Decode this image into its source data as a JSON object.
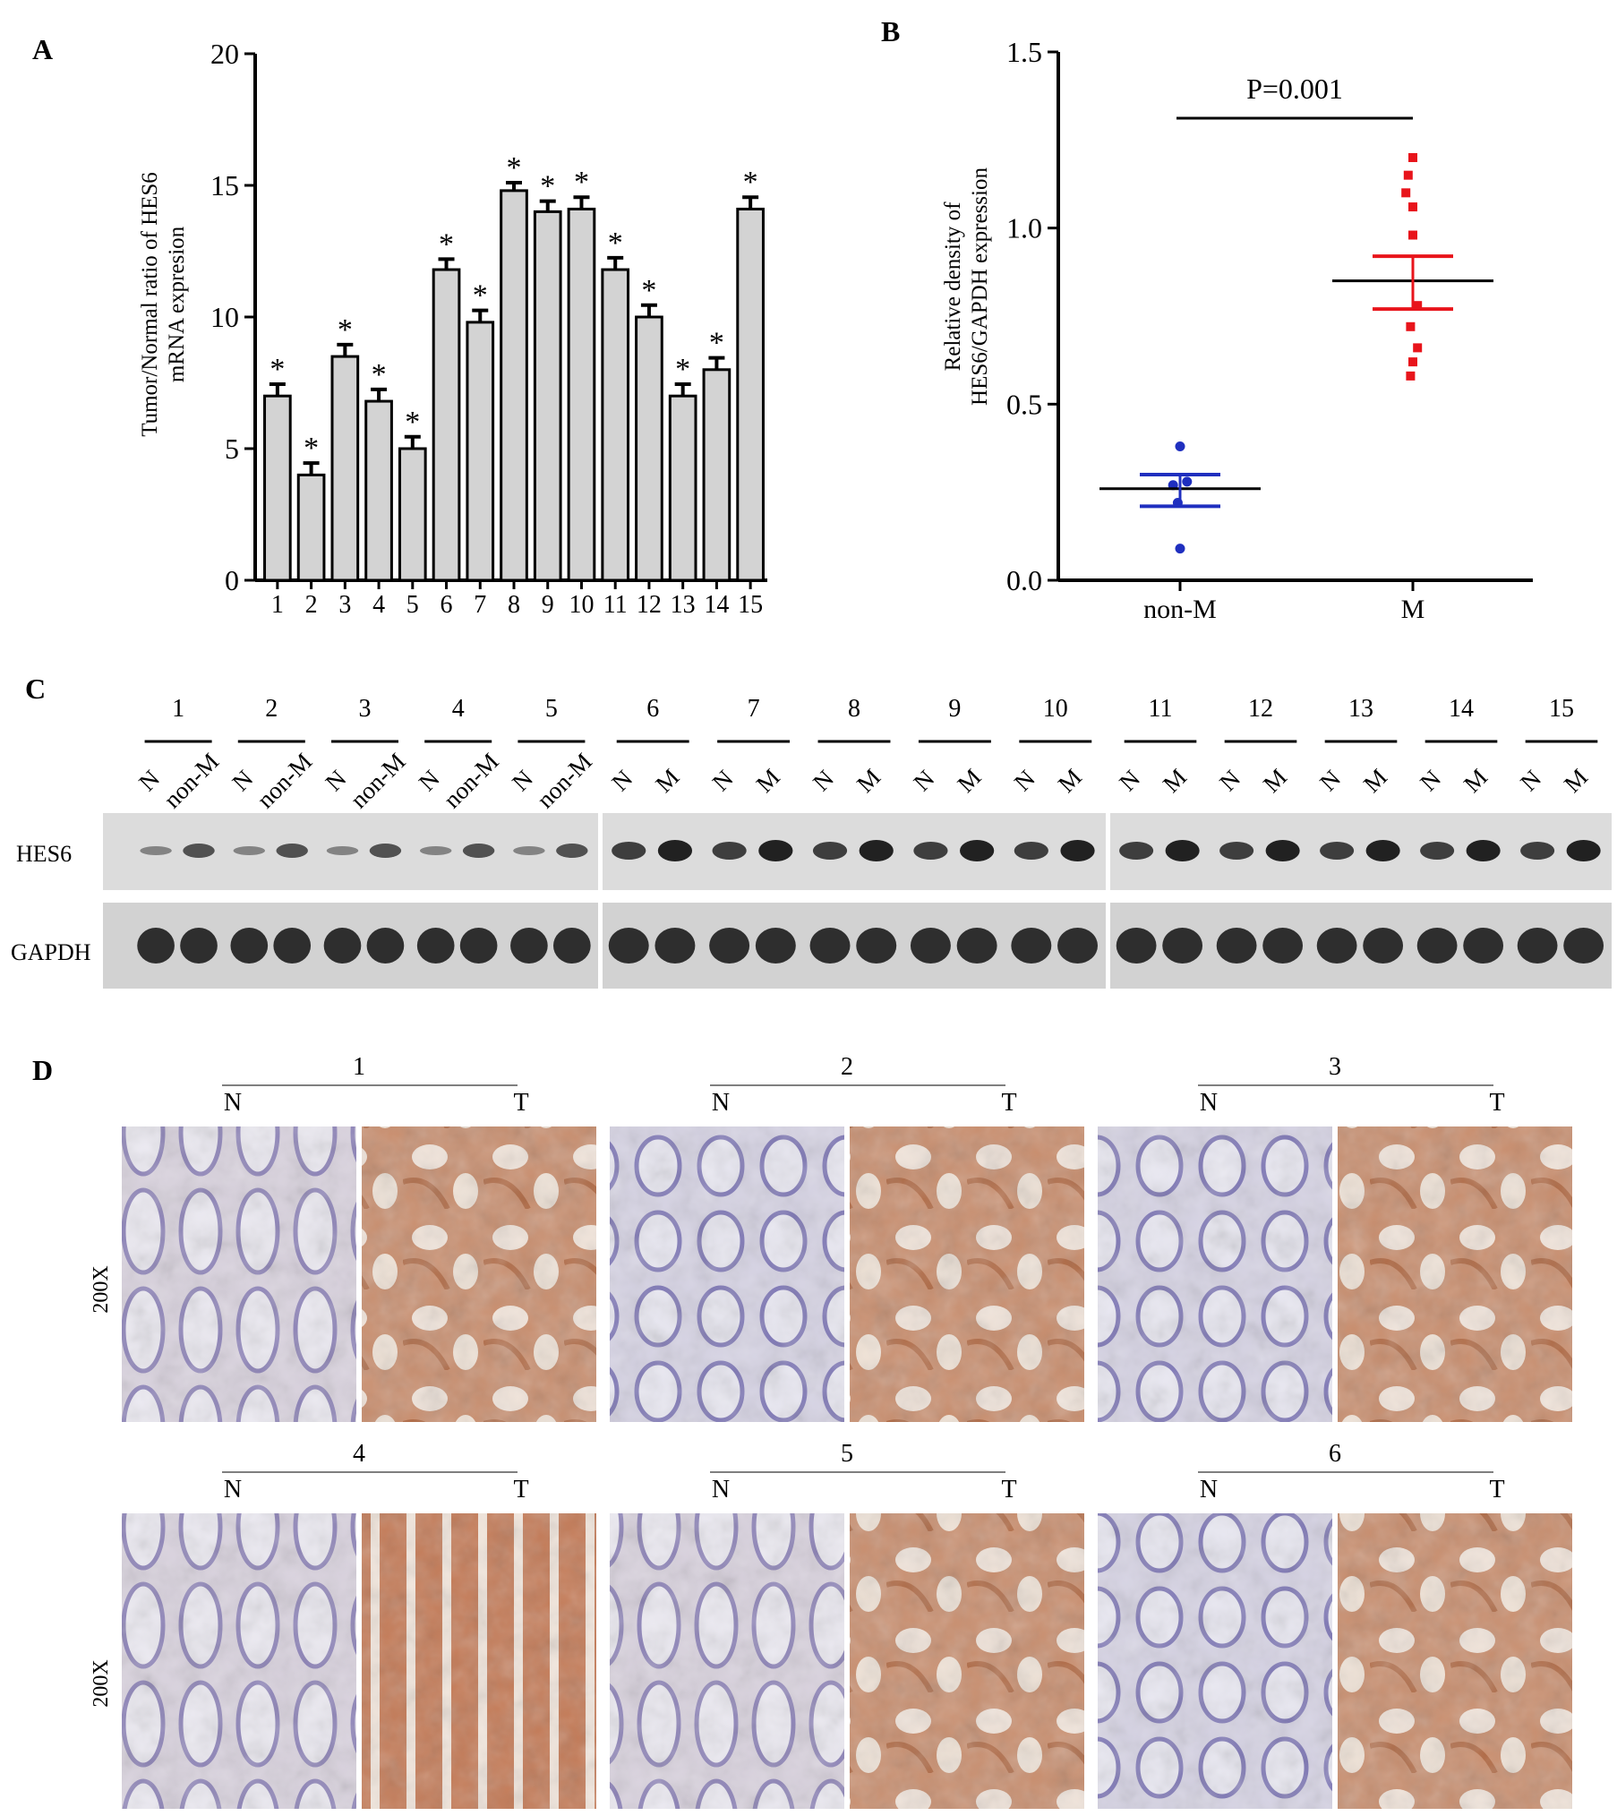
{
  "panels": {
    "a": "A",
    "b": "B",
    "c": "C",
    "d": "D"
  },
  "chart_data": [
    {
      "type": "bar",
      "panel": "A",
      "ylabel_line1": "Tumor/Normal ratio of HES6",
      "ylabel_line2": "mRNA expresion",
      "categories": [
        "1",
        "2",
        "3",
        "4",
        "5",
        "6",
        "7",
        "8",
        "9",
        "10",
        "11",
        "12",
        "13",
        "14",
        "15"
      ],
      "values": [
        7.0,
        4.0,
        8.5,
        6.8,
        5.0,
        11.8,
        9.8,
        14.8,
        14.0,
        14.1,
        11.8,
        10.0,
        7.0,
        8.0,
        14.1
      ],
      "errors": [
        0.45,
        0.45,
        0.45,
        0.45,
        0.45,
        0.4,
        0.45,
        0.3,
        0.4,
        0.45,
        0.45,
        0.45,
        0.45,
        0.45,
        0.45
      ],
      "significance": [
        "*",
        "*",
        "*",
        "*",
        "*",
        "*",
        "*",
        "*",
        "*",
        "*",
        "*",
        "*",
        "*",
        "*",
        "*"
      ],
      "ylim": [
        0,
        20
      ],
      "yticks": [
        "0",
        "5",
        "10",
        "15",
        "20"
      ],
      "bar_color": "#d3d3d3"
    },
    {
      "type": "scatter",
      "panel": "B",
      "ylabel_line1": "Relative density of",
      "ylabel_line2": "HES6/GAPDH expression",
      "categories": [
        "non-M",
        "M"
      ],
      "ylim": [
        0.0,
        1.5
      ],
      "yticks": [
        "0.0",
        "0.5",
        "1.0",
        "1.5"
      ],
      "pvalue": "P=0.001",
      "series": [
        {
          "group": "non-M",
          "color": "#1f2fbf",
          "points": [
            [
              -0.03,
              0.27
            ],
            [
              0.03,
              0.28
            ],
            [
              0.0,
              0.38
            ],
            [
              -0.01,
              0.22
            ],
            [
              0.0,
              0.09
            ]
          ],
          "mean": 0.26,
          "sem_low": 0.21,
          "sem_high": 0.3
        },
        {
          "group": "M",
          "color": "#e8141b",
          "points": [
            [
              0.0,
              1.2
            ],
            [
              -0.02,
              1.15
            ],
            [
              -0.03,
              1.1
            ],
            [
              0.0,
              1.06
            ],
            [
              0.0,
              0.98
            ],
            [
              0.02,
              0.78
            ],
            [
              -0.01,
              0.72
            ],
            [
              0.02,
              0.66
            ],
            [
              0.0,
              0.62
            ],
            [
              -0.01,
              0.58
            ]
          ],
          "mean": 0.85,
          "sem_low": 0.77,
          "sem_high": 0.92
        }
      ]
    }
  ],
  "blot": {
    "group1": {
      "numbers": [
        "1",
        "2",
        "3",
        "4",
        "5"
      ],
      "lanes": [
        "N",
        "non-M"
      ]
    },
    "group2": {
      "numbers": [
        "6",
        "7",
        "8",
        "9",
        "10"
      ],
      "lanes": [
        "N",
        "M"
      ]
    },
    "group3": {
      "numbers": [
        "11",
        "12",
        "13",
        "14",
        "15"
      ],
      "lanes": [
        "N",
        "M"
      ]
    },
    "hes6_label": "HES6",
    "gapdh_label": "GAPDH"
  },
  "ihc": {
    "mag": "200X",
    "cases": [
      "1",
      "2",
      "3",
      "4",
      "5",
      "6"
    ],
    "n_label": "N",
    "t_label": "T"
  }
}
